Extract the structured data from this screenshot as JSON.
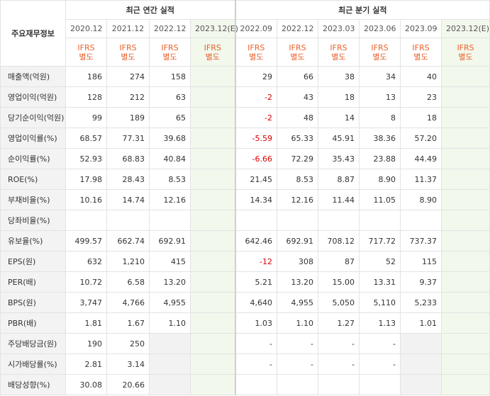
{
  "header": {
    "row_label": "주요재무정보",
    "annual_title": "최근 연간 실적",
    "quarterly_title": "최근 분기 실적",
    "annual_periods": [
      "2020.12",
      "2021.12",
      "2022.12",
      "2023.12(E)"
    ],
    "quarterly_periods": [
      "2022.09",
      "2022.12",
      "2023.03",
      "2023.06",
      "2023.09",
      "2023.12(E)"
    ],
    "accounting_line1": "IFRS",
    "accounting_line2": "별도"
  },
  "rows": [
    {
      "label": "매출액(억원)",
      "annual": [
        "186",
        "274",
        "158",
        ""
      ],
      "quarterly": [
        "29",
        "66",
        "38",
        "34",
        "40",
        ""
      ]
    },
    {
      "label": "영업이익(억원)",
      "annual": [
        "128",
        "212",
        "63",
        ""
      ],
      "quarterly": [
        "-2",
        "43",
        "18",
        "13",
        "23",
        ""
      ]
    },
    {
      "label": "당기순이익(억원)",
      "annual": [
        "99",
        "189",
        "65",
        ""
      ],
      "quarterly": [
        "-2",
        "48",
        "14",
        "8",
        "18",
        ""
      ]
    },
    {
      "label": "영업이익률(%)",
      "annual": [
        "68.57",
        "77.31",
        "39.68",
        ""
      ],
      "quarterly": [
        "-5.59",
        "65.33",
        "45.91",
        "38.36",
        "57.20",
        ""
      ]
    },
    {
      "label": "순이익률(%)",
      "annual": [
        "52.93",
        "68.83",
        "40.84",
        ""
      ],
      "quarterly": [
        "-6.66",
        "72.29",
        "35.43",
        "23.88",
        "44.49",
        ""
      ]
    },
    {
      "label": "ROE(%)",
      "annual": [
        "17.98",
        "28.43",
        "8.53",
        ""
      ],
      "quarterly": [
        "21.45",
        "8.53",
        "8.87",
        "8.90",
        "11.37",
        ""
      ]
    },
    {
      "label": "부채비율(%)",
      "annual": [
        "10.16",
        "14.74",
        "12.16",
        ""
      ],
      "quarterly": [
        "14.34",
        "12.16",
        "11.44",
        "11.05",
        "8.90",
        ""
      ]
    },
    {
      "label": "당좌비율(%)",
      "annual": [
        "",
        "",
        "",
        ""
      ],
      "quarterly": [
        "",
        "",
        "",
        "",
        "",
        ""
      ]
    },
    {
      "label": "유보율(%)",
      "annual": [
        "499.57",
        "662.74",
        "692.91",
        ""
      ],
      "quarterly": [
        "642.46",
        "692.91",
        "708.12",
        "717.72",
        "737.37",
        ""
      ]
    },
    {
      "label": "EPS(원)",
      "annual": [
        "632",
        "1,210",
        "415",
        ""
      ],
      "quarterly": [
        "-12",
        "308",
        "87",
        "52",
        "115",
        ""
      ]
    },
    {
      "label": "PER(배)",
      "annual": [
        "10.72",
        "6.58",
        "13.20",
        ""
      ],
      "quarterly": [
        "5.21",
        "13.20",
        "15.00",
        "13.31",
        "9.37",
        ""
      ]
    },
    {
      "label": "BPS(원)",
      "annual": [
        "3,747",
        "4,766",
        "4,955",
        ""
      ],
      "quarterly": [
        "4,640",
        "4,955",
        "5,050",
        "5,110",
        "5,233",
        ""
      ]
    },
    {
      "label": "PBR(배)",
      "annual": [
        "1.81",
        "1.67",
        "1.10",
        ""
      ],
      "quarterly": [
        "1.03",
        "1.10",
        "1.27",
        "1.13",
        "1.01",
        ""
      ]
    },
    {
      "label": "주당배당금(원)",
      "annual": [
        "190",
        "250",
        "",
        ""
      ],
      "quarterly": [
        "-",
        "-",
        "-",
        "-",
        "",
        ""
      ]
    },
    {
      "label": "시가배당률(%)",
      "annual": [
        "2.81",
        "3.14",
        "",
        ""
      ],
      "quarterly": [
        "-",
        "-",
        "-",
        "-",
        "",
        ""
      ]
    },
    {
      "label": "배당성향(%)",
      "annual": [
        "30.08",
        "20.66",
        "",
        ""
      ],
      "quarterly": [
        "",
        "",
        "",
        "",
        "",
        ""
      ]
    }
  ],
  "colors": {
    "estimate_bg": "#f2f8ec",
    "negative": "#d60000",
    "accounting": "#e8612c",
    "label_bg": "#f3f3f3"
  }
}
